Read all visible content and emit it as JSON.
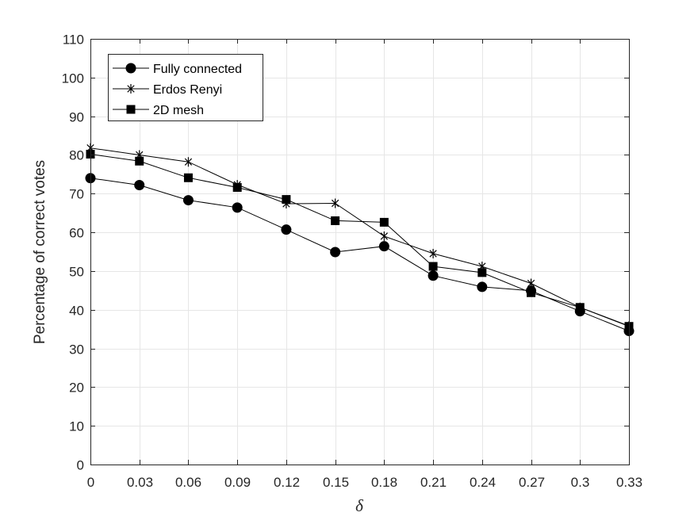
{
  "chart_data": {
    "type": "line",
    "title": "",
    "xlabel": "δ",
    "ylabel": "Percentage of correct votes",
    "x": [
      0,
      0.03,
      0.06,
      0.09,
      0.12,
      0.15,
      0.18,
      0.21,
      0.24,
      0.27,
      0.3,
      0.33
    ],
    "xtick_labels": [
      "0",
      "0.03",
      "0.06",
      "0.09",
      "0.12",
      "0.15",
      "0.18",
      "0.21",
      "0.24",
      "0.27",
      "0.3",
      "0.33"
    ],
    "xlim": [
      0,
      0.33
    ],
    "ylim": [
      0,
      110
    ],
    "yticks": [
      0,
      10,
      20,
      30,
      40,
      50,
      60,
      70,
      80,
      90,
      100,
      110
    ],
    "grid": true,
    "legend_position": "top-left",
    "series": [
      {
        "name": "Fully connected",
        "marker": "circle",
        "color": "#000000",
        "values": [
          74.0,
          72.2,
          68.3,
          66.4,
          60.7,
          54.9,
          56.4,
          48.8,
          45.9,
          44.9,
          39.6,
          34.5
        ]
      },
      {
        "name": "Erdos Renyi",
        "marker": "asterisk",
        "color": "#000000",
        "values": [
          81.8,
          80.0,
          78.2,
          72.3,
          67.4,
          67.5,
          59.0,
          54.5,
          51.2,
          46.8,
          40.6,
          35.8
        ]
      },
      {
        "name": "2D mesh",
        "marker": "square",
        "color": "#000000",
        "values": [
          80.2,
          78.4,
          74.1,
          71.6,
          68.5,
          63.0,
          62.6,
          51.2,
          49.6,
          44.4,
          40.6,
          35.7
        ]
      }
    ]
  }
}
